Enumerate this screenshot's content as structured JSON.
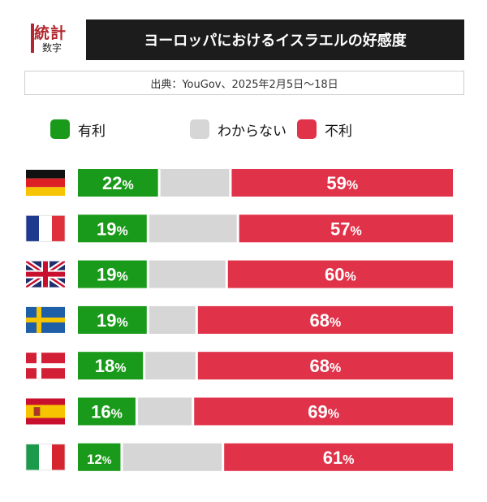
{
  "logo": {
    "line1": "統計",
    "line2": "数字"
  },
  "title": "ヨーロッパにおけるイスラエルの好感度",
  "source": "出典：YouGov、2025年2月5日〜18日",
  "colors": {
    "favorable": "#1a9a1a",
    "unknown": "#d6d6d6",
    "unfavorable": "#e0334a"
  },
  "chart_data": {
    "type": "bar",
    "stacked": true,
    "orientation": "horizontal",
    "title": "ヨーロッパにおけるイスラエルの好感度",
    "categories": [
      "Germany",
      "France",
      "United Kingdom",
      "Sweden",
      "Denmark",
      "Spain",
      "Italy"
    ],
    "flag_icons": [
      "flag-germany-icon",
      "flag-france-icon",
      "flag-uk-icon",
      "flag-sweden-icon",
      "flag-denmark-icon",
      "flag-spain-icon",
      "flag-italy-icon"
    ],
    "series": [
      {
        "name": "有利",
        "values": [
          22,
          19,
          19,
          19,
          18,
          16,
          12
        ]
      },
      {
        "name": "わからない",
        "values": [
          19,
          24,
          21,
          13,
          14,
          15,
          27
        ]
      },
      {
        "name": "不利",
        "values": [
          59,
          57,
          60,
          68,
          68,
          69,
          61
        ]
      }
    ],
    "xlim": [
      0,
      100
    ],
    "legend_position": "top"
  }
}
